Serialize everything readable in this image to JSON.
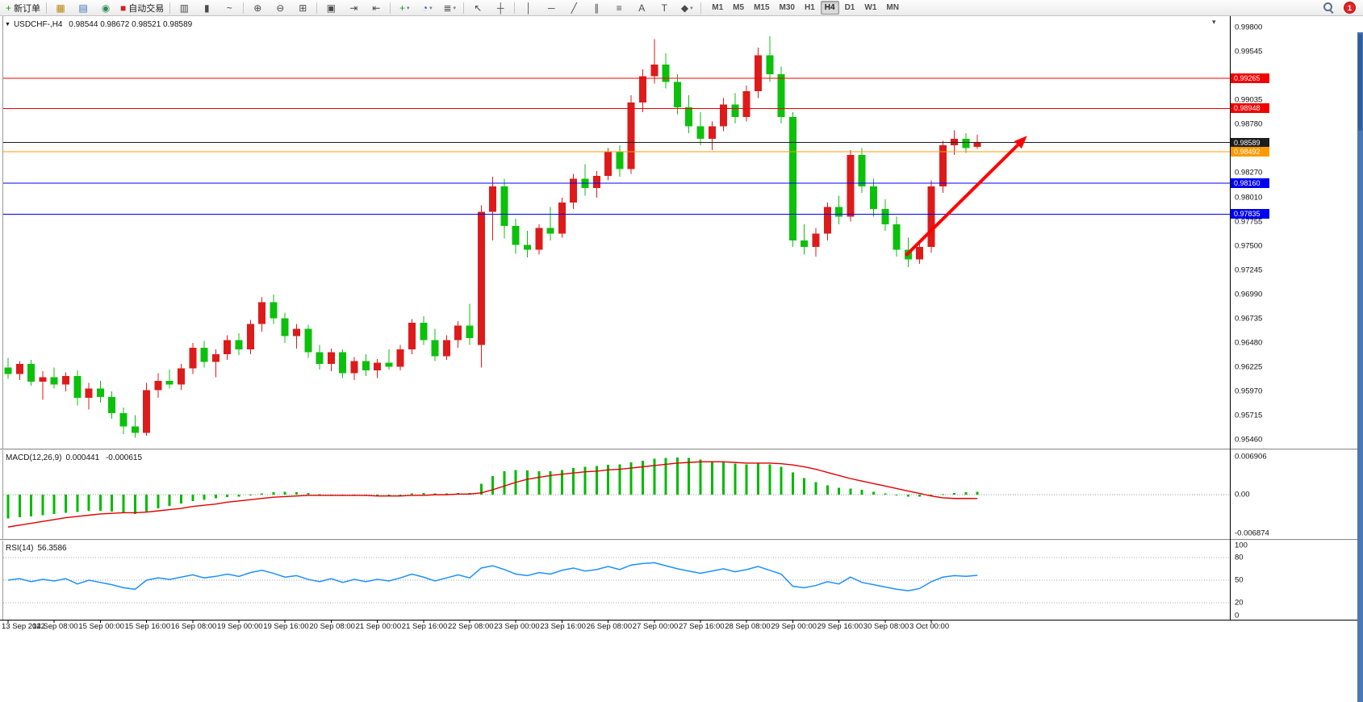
{
  "toolbar": {
    "new_order_label": "新订单",
    "auto_trading_label": "自动交易",
    "timeframes": [
      "M1",
      "M5",
      "M15",
      "M30",
      "H1",
      "H4",
      "D1",
      "W1",
      "MN"
    ],
    "active_timeframe": "H4",
    "notification_count": "1",
    "buttons": [
      {
        "name": "new-order-button",
        "glyph": "+",
        "glyph_color": "#1a9c1a",
        "label_key": "new_order_label"
      },
      {
        "sep": true
      },
      {
        "name": "charts-window-button",
        "glyph": "▦",
        "glyph_color": "#b8860b"
      },
      {
        "name": "quotes-button",
        "glyph": "▤",
        "glyph_color": "#3a6fb5"
      },
      {
        "name": "navigator-button",
        "glyph": "◉",
        "glyph_color": "#2e8b57"
      },
      {
        "name": "autotrading-button",
        "glyph": "■",
        "glyph_color": "#cc2222",
        "label_key": "auto_trading_label"
      },
      {
        "sep": true
      },
      {
        "name": "bar-chart-button",
        "glyph": "▥"
      },
      {
        "name": "candlestick-chart-button",
        "glyph": "▮"
      },
      {
        "name": "line-chart-button",
        "glyph": "~"
      },
      {
        "sep": true
      },
      {
        "name": "zoom-in-button",
        "glyph": "⊕"
      },
      {
        "name": "zoom-out-button",
        "glyph": "⊖"
      },
      {
        "name": "tile-windows-button",
        "glyph": "⊞"
      },
      {
        "sep": true
      },
      {
        "name": "arrange-windows-button",
        "glyph": "▣"
      },
      {
        "name": "auto-scroll-button",
        "glyph": "⇥"
      },
      {
        "name": "chart-shift-button",
        "glyph": "⇤"
      },
      {
        "sep": true
      },
      {
        "name": "new-chart-button",
        "glyph": "+",
        "glyph_color": "#1a9c1a",
        "dropdown": true
      },
      {
        "name": "periods-button",
        "glyph": "◔",
        "glyph_color": "#2255cc",
        "dropdown": true
      },
      {
        "name": "indicators-button",
        "glyph": "≣",
        "dropdown": true
      },
      {
        "sep": true
      },
      {
        "name": "cursor-button",
        "glyph": "↖"
      },
      {
        "name": "crosshair-button",
        "glyph": "┼"
      },
      {
        "sep": true
      },
      {
        "name": "vertical-line-button",
        "glyph": "│"
      },
      {
        "name": "horizontal-line-button",
        "glyph": "─"
      },
      {
        "name": "trendline-button",
        "glyph": "╱"
      },
      {
        "name": "channel-button",
        "glyph": "∥"
      },
      {
        "name": "fibonacci-button",
        "glyph": "≡"
      },
      {
        "name": "text-button",
        "glyph": "A"
      },
      {
        "name": "label-button",
        "glyph": "T"
      },
      {
        "name": "arrows-button",
        "glyph": "◆",
        "dropdown": true
      },
      {
        "sep": true
      }
    ]
  },
  "window": {
    "scrollbar_color": "#4a77b5"
  },
  "chart_data": [
    {
      "type": "candlestick",
      "symbol_period": "USDCHF-,H4",
      "ohlc_text": "0.98544  0.98672  0.98521  0.98589",
      "ohlc_display": {
        "open": "0.98544",
        "high": "0.98672",
        "low": "0.98521",
        "close": "0.98589"
      },
      "bull_color": "#dd1b1b",
      "bear_color": "#0cc00c",
      "ylim": [
        0.954,
        0.9987
      ],
      "price_axis_labels": [
        "0.99800",
        "0.99545",
        "0.99035",
        "0.98780",
        "0.98270",
        "0.98010",
        "0.97755",
        "0.97500",
        "0.97245",
        "0.96990",
        "0.96735",
        "0.96480",
        "0.96225",
        "0.95970",
        "0.95715",
        "0.95460"
      ],
      "hlines": [
        {
          "price": 0.99265,
          "label": "0.99265",
          "color": "#f20000"
        },
        {
          "price": 0.98948,
          "label": "0.98948",
          "color": "#f20000"
        },
        {
          "price": 0.98589,
          "label": "0.98589",
          "color": "#1c1c1c"
        },
        {
          "price": 0.98492,
          "label": "0.98492",
          "color": "#ff9900"
        },
        {
          "price": 0.9816,
          "label": "0.98160",
          "color": "#0000f2"
        },
        {
          "price": 0.97835,
          "label": "0.97835",
          "color": "#0000f2"
        }
      ],
      "arrow": {
        "from_index": 77.8,
        "from_price": 0.974,
        "to_index": 88.3,
        "to_price": 0.9866,
        "color": "#ff0000"
      },
      "time_labels": [
        "13 Sep 2022",
        "14 Sep 08:00",
        "15 Sep 00:00",
        "15 Sep 16:00",
        "16 Sep 08:00",
        "19 Sep 00:00",
        "19 Sep 16:00",
        "20 Sep 08:00",
        "21 Sep 00:00",
        "21 Sep 16:00",
        "22 Sep 08:00",
        "23 Sep 00:00",
        "23 Sep 16:00",
        "26 Sep 08:00",
        "27 Sep 00:00",
        "27 Sep 16:00",
        "28 Sep 08:00",
        "29 Sep 00:00",
        "29 Sep 16:00",
        "30 Sep 08:00",
        "3 Oct 00:00"
      ],
      "label_every": 4,
      "candles": [
        [
          0.9622,
          0.9632,
          0.961,
          0.9615
        ],
        [
          0.9615,
          0.9629,
          0.9609,
          0.9626
        ],
        [
          0.9626,
          0.963,
          0.9603,
          0.9607
        ],
        [
          0.9607,
          0.9618,
          0.9588,
          0.9612
        ],
        [
          0.9612,
          0.9622,
          0.96,
          0.9604
        ],
        [
          0.9604,
          0.9617,
          0.9597,
          0.9613
        ],
        [
          0.9613,
          0.9619,
          0.9582,
          0.959
        ],
        [
          0.959,
          0.9606,
          0.9578,
          0.96
        ],
        [
          0.96,
          0.9608,
          0.9585,
          0.9591
        ],
        [
          0.9591,
          0.9597,
          0.9568,
          0.9574
        ],
        [
          0.9574,
          0.958,
          0.9552,
          0.956
        ],
        [
          0.956,
          0.9572,
          0.9548,
          0.9553
        ],
        [
          0.9553,
          0.9606,
          0.955,
          0.9598
        ],
        [
          0.9598,
          0.9616,
          0.959,
          0.9608
        ],
        [
          0.9608,
          0.962,
          0.96,
          0.9604
        ],
        [
          0.9604,
          0.9626,
          0.9598,
          0.9621
        ],
        [
          0.9621,
          0.9648,
          0.9615,
          0.9643
        ],
        [
          0.9643,
          0.965,
          0.9622,
          0.9628
        ],
        [
          0.9628,
          0.9641,
          0.9612,
          0.9636
        ],
        [
          0.9636,
          0.9656,
          0.963,
          0.9651
        ],
        [
          0.9651,
          0.9658,
          0.9635,
          0.9641
        ],
        [
          0.9641,
          0.9672,
          0.9636,
          0.9668
        ],
        [
          0.9668,
          0.9696,
          0.966,
          0.9691
        ],
        [
          0.9691,
          0.9699,
          0.9668,
          0.9674
        ],
        [
          0.9674,
          0.968,
          0.9648,
          0.9655
        ],
        [
          0.9655,
          0.9668,
          0.9642,
          0.9663
        ],
        [
          0.9663,
          0.9667,
          0.9632,
          0.9638
        ],
        [
          0.9638,
          0.9646,
          0.962,
          0.9626
        ],
        [
          0.9626,
          0.9642,
          0.9618,
          0.9638
        ],
        [
          0.9638,
          0.9641,
          0.9611,
          0.9616
        ],
        [
          0.9616,
          0.9633,
          0.9609,
          0.9629
        ],
        [
          0.9629,
          0.9636,
          0.9613,
          0.9619
        ],
        [
          0.9619,
          0.9631,
          0.9611,
          0.9627
        ],
        [
          0.9627,
          0.9641,
          0.962,
          0.9623
        ],
        [
          0.9623,
          0.9646,
          0.9619,
          0.9641
        ],
        [
          0.9641,
          0.9673,
          0.9636,
          0.9669
        ],
        [
          0.9669,
          0.9676,
          0.9646,
          0.9651
        ],
        [
          0.9651,
          0.9663,
          0.9629,
          0.9634
        ],
        [
          0.9634,
          0.9656,
          0.963,
          0.9651
        ],
        [
          0.9651,
          0.9671,
          0.9643,
          0.9666
        ],
        [
          0.9666,
          0.9689,
          0.9646,
          0.9653
        ],
        [
          0.9646,
          0.9793,
          0.9622,
          0.9786
        ],
        [
          0.9786,
          0.9823,
          0.9756,
          0.9813
        ],
        [
          0.9813,
          0.9821,
          0.9758,
          0.9771
        ],
        [
          0.9771,
          0.9779,
          0.9742,
          0.9751
        ],
        [
          0.9751,
          0.9766,
          0.9738,
          0.9746
        ],
        [
          0.9746,
          0.9773,
          0.9741,
          0.9769
        ],
        [
          0.9769,
          0.9791,
          0.9756,
          0.9763
        ],
        [
          0.9763,
          0.9801,
          0.9759,
          0.9796
        ],
        [
          0.9796,
          0.9826,
          0.9789,
          0.9821
        ],
        [
          0.9821,
          0.9836,
          0.9803,
          0.9811
        ],
        [
          0.9811,
          0.9829,
          0.9801,
          0.9824
        ],
        [
          0.9824,
          0.9853,
          0.9819,
          0.9849
        ],
        [
          0.9849,
          0.9856,
          0.9823,
          0.9831
        ],
        [
          0.9831,
          0.9909,
          0.9826,
          0.9901
        ],
        [
          0.9901,
          0.9936,
          0.9891,
          0.9929
        ],
        [
          0.9929,
          0.9968,
          0.9921,
          0.9941
        ],
        [
          0.9941,
          0.9953,
          0.9916,
          0.9923
        ],
        [
          0.9923,
          0.9931,
          0.9889,
          0.9896
        ],
        [
          0.9896,
          0.9909,
          0.9869,
          0.9876
        ],
        [
          0.9876,
          0.9891,
          0.9856,
          0.9863
        ],
        [
          0.9863,
          0.9881,
          0.9851,
          0.9876
        ],
        [
          0.9876,
          0.9906,
          0.9871,
          0.9899
        ],
        [
          0.9899,
          0.9911,
          0.9879,
          0.9886
        ],
        [
          0.9886,
          0.9919,
          0.9881,
          0.9913
        ],
        [
          0.9913,
          0.9959,
          0.9906,
          0.9951
        ],
        [
          0.9951,
          0.9971,
          0.9923,
          0.9931
        ],
        [
          0.9931,
          0.9939,
          0.9879,
          0.9886
        ],
        [
          0.9886,
          0.9891,
          0.9749,
          0.9756
        ],
        [
          0.9756,
          0.9773,
          0.9741,
          0.9749
        ],
        [
          0.9749,
          0.9769,
          0.9739,
          0.9763
        ],
        [
          0.9763,
          0.9796,
          0.9756,
          0.9791
        ],
        [
          0.9791,
          0.9803,
          0.9773,
          0.9781
        ],
        [
          0.9781,
          0.9851,
          0.9776,
          0.9846
        ],
        [
          0.9846,
          0.9853,
          0.9806,
          0.9813
        ],
        [
          0.9813,
          0.9821,
          0.9781,
          0.9789
        ],
        [
          0.9789,
          0.9799,
          0.9766,
          0.9773
        ],
        [
          0.9773,
          0.9781,
          0.9739,
          0.9746
        ],
        [
          0.9746,
          0.9759,
          0.9728,
          0.9736
        ],
        [
          0.9736,
          0.9753,
          0.9731,
          0.9749
        ],
        [
          0.9749,
          0.9819,
          0.9743,
          0.9813
        ],
        [
          0.9813,
          0.9861,
          0.9806,
          0.9856
        ],
        [
          0.9856,
          0.9872,
          0.9846,
          0.9863
        ],
        [
          0.9863,
          0.9869,
          0.9848,
          0.9853
        ],
        [
          0.98544,
          0.98672,
          0.98521,
          0.98589
        ]
      ]
    },
    {
      "type": "macd",
      "title": "MACD(12,26,9)",
      "value_main": "0.000441",
      "value_signal": "-0.000615",
      "histogram_color": "#00bb00",
      "signal_color": "#e00000",
      "ylim": [
        -0.006874,
        0.006906
      ],
      "axis_labels": [
        "0.006906",
        "0.00",
        "-0.006874"
      ],
      "histogram": [
        -0.0038,
        -0.0036,
        -0.0035,
        -0.0033,
        -0.0031,
        -0.0029,
        -0.0028,
        -0.0026,
        -0.0026,
        -0.0027,
        -0.0029,
        -0.0031,
        -0.0027,
        -0.0022,
        -0.0018,
        -0.0014,
        -0.001,
        -0.0008,
        -0.0006,
        -0.0004,
        -0.0003,
        -0.0001,
        0.0002,
        0.0004,
        0.0005,
        0.0004,
        0.0003,
        0.0001,
        0.0,
        -0.0001,
        -0.0001,
        -0.0002,
        -0.0002,
        -0.0001,
        0.0,
        0.0002,
        0.0003,
        0.0002,
        0.0002,
        0.0003,
        0.0003,
        0.0018,
        0.003,
        0.0038,
        0.004,
        0.0039,
        0.0038,
        0.0038,
        0.004,
        0.0043,
        0.0045,
        0.0046,
        0.0048,
        0.0049,
        0.0052,
        0.0055,
        0.0058,
        0.0059,
        0.006,
        0.0059,
        0.0057,
        0.0054,
        0.0052,
        0.005,
        0.0049,
        0.005,
        0.0049,
        0.0045,
        0.0036,
        0.0027,
        0.002,
        0.0015,
        0.0011,
        0.001,
        0.0008,
        0.0005,
        0.0002,
        -0.0001,
        -0.0003,
        -0.0003,
        -0.0001,
        0.0001,
        0.0003,
        0.0004,
        0.000441
      ],
      "signal": [
        -0.0052,
        -0.0049,
        -0.0046,
        -0.0043,
        -0.004,
        -0.0037,
        -0.0035,
        -0.0033,
        -0.0031,
        -0.003,
        -0.0029,
        -0.0029,
        -0.0028,
        -0.0026,
        -0.0024,
        -0.0022,
        -0.0019,
        -0.0017,
        -0.0015,
        -0.0012,
        -0.001,
        -0.0008,
        -0.0006,
        -0.0004,
        -0.0003,
        -0.0002,
        -0.0001,
        -0.0001,
        -0.0001,
        -0.0001,
        -0.0001,
        -0.0001,
        -0.0002,
        -0.0002,
        -0.0002,
        -0.0001,
        -0.0001,
        0.0,
        0.0,
        0.0001,
        0.0001,
        0.0003,
        0.0008,
        0.0014,
        0.002,
        0.0025,
        0.0028,
        0.0031,
        0.0033,
        0.0035,
        0.0037,
        0.0038,
        0.004,
        0.0041,
        0.0043,
        0.0045,
        0.0047,
        0.0049,
        0.0051,
        0.0052,
        0.0053,
        0.0053,
        0.0053,
        0.0052,
        0.0051,
        0.0051,
        0.0051,
        0.005,
        0.0048,
        0.0045,
        0.0041,
        0.0036,
        0.0031,
        0.0026,
        0.0022,
        0.0018,
        0.0014,
        0.001,
        0.0006,
        0.0002,
        -0.0002,
        -0.0005,
        -0.0006,
        -0.0006,
        -0.000615
      ]
    },
    {
      "type": "rsi",
      "title": "RSI(14)",
      "value": "56.3586",
      "line_color": "#1e90ff",
      "ylim": [
        0,
        100
      ],
      "levels": [
        80,
        50,
        20
      ],
      "axis_labels": [
        "100",
        "80",
        "50",
        "20",
        "0"
      ],
      "values": [
        50,
        52,
        48,
        51,
        49,
        52,
        45,
        50,
        47,
        44,
        40,
        38,
        50,
        53,
        51,
        54,
        57,
        53,
        55,
        58,
        55,
        60,
        63,
        59,
        54,
        56,
        51,
        48,
        52,
        47,
        51,
        48,
        51,
        49,
        53,
        58,
        54,
        49,
        53,
        57,
        53,
        66,
        69,
        64,
        58,
        56,
        60,
        58,
        63,
        66,
        62,
        64,
        68,
        64,
        70,
        72,
        73,
        69,
        65,
        62,
        59,
        62,
        65,
        61,
        64,
        68,
        63,
        58,
        42,
        40,
        43,
        48,
        45,
        54,
        47,
        44,
        41,
        38,
        36,
        39,
        48,
        54,
        56,
        55,
        56.36
      ]
    }
  ]
}
